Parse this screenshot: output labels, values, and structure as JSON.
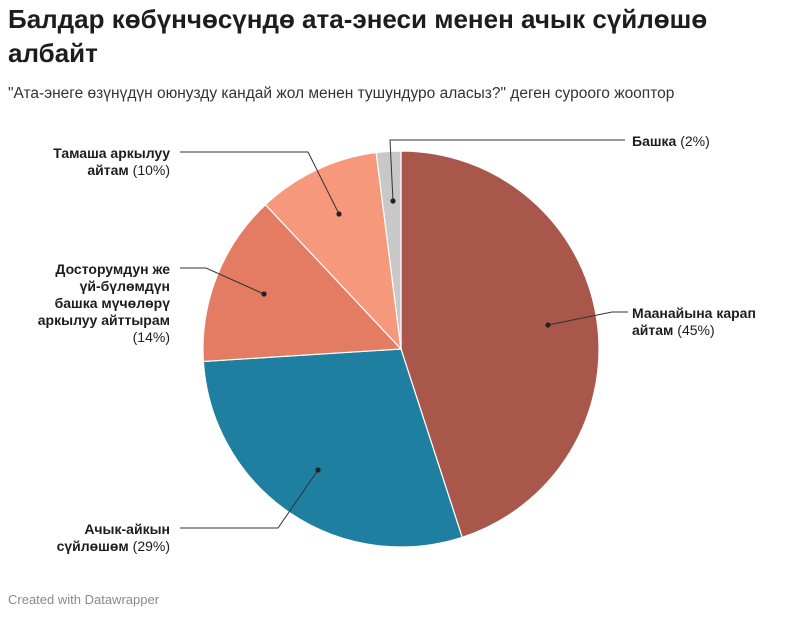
{
  "title": "Балдар көбүнчөсүндө ата-энеси менен ачык сүйлөшө албайт",
  "subtitle": "\"Ата-энеге өзүнүдүн оюнузду кандай жол менен тушундуро аласыз?\" деген суроого жооптор",
  "credit": "Created with Datawrapper",
  "chart_data": {
    "type": "pie",
    "slices": [
      {
        "label_lines": [
          "Маанайына карап",
          "айтам"
        ],
        "percent_text": "(45%)",
        "value": 45,
        "color": "#a8574a"
      },
      {
        "label_lines": [
          "Ачык-айкын",
          "сүйлөшөм"
        ],
        "percent_text": "(29%)",
        "value": 29,
        "color": "#1f7fa0"
      },
      {
        "label_lines": [
          "Досторумдун же",
          "үй-бүлөмдүн",
          "башка мүчөлөрү",
          "аркылуу айттырам"
        ],
        "percent_text": "(14%)",
        "value": 14,
        "color": "#e47b63"
      },
      {
        "label_lines": [
          "Тамаша аркылуу",
          "айтам"
        ],
        "percent_text": "(10%)",
        "value": 10,
        "color": "#f6987c"
      },
      {
        "label_lines": [
          "Башка"
        ],
        "percent_text": "(2%)",
        "value": 2,
        "color": "#c8c8c8"
      }
    ]
  }
}
